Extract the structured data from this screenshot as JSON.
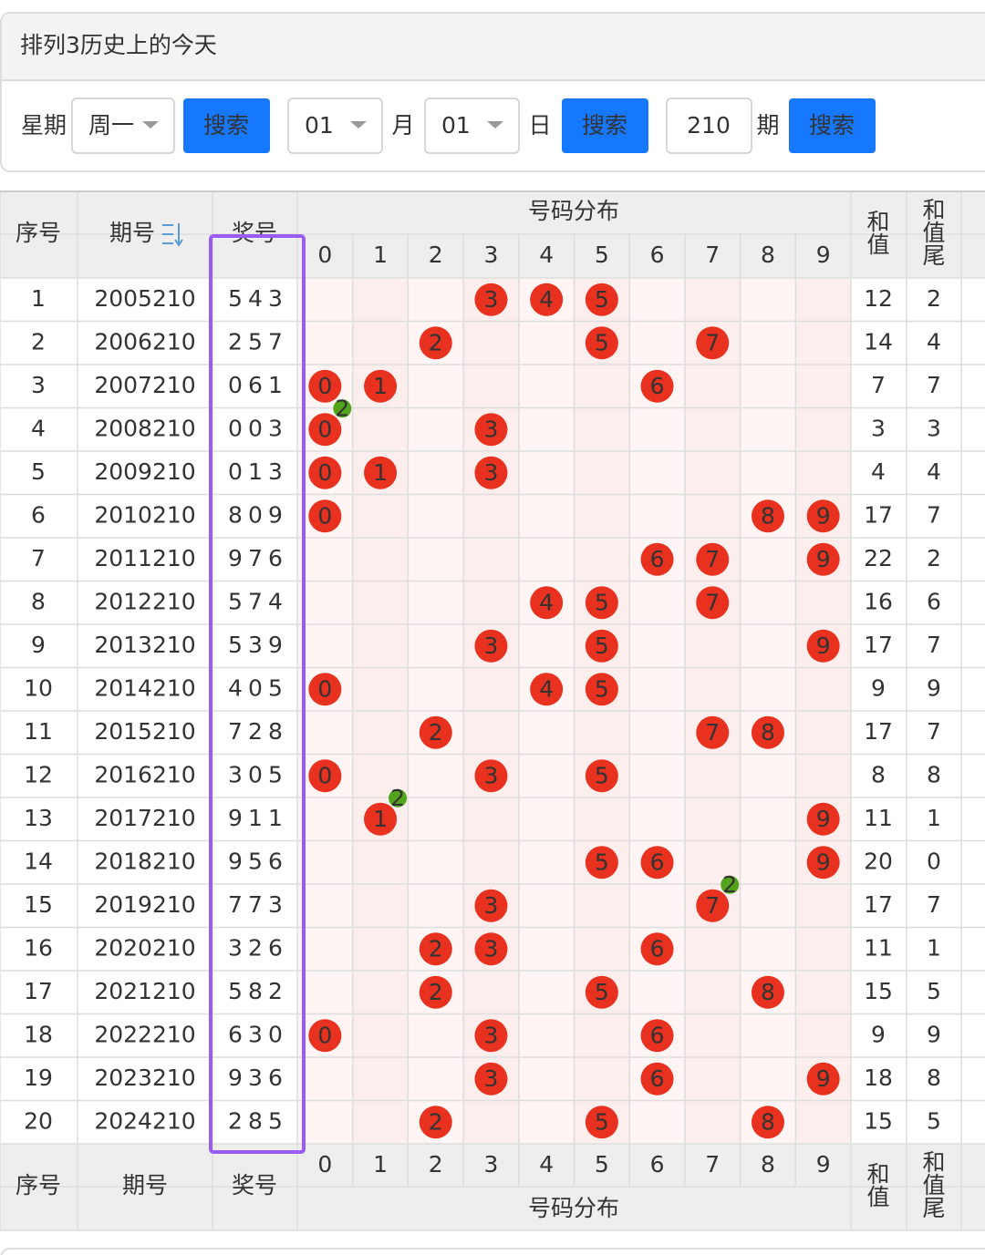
{
  "header": {
    "title": "排列3历史上的今天"
  },
  "search": {
    "weekday_label": "星期",
    "weekday": "周一",
    "button_1": "搜索",
    "month": "01",
    "month_label": "月",
    "day": "01",
    "day_label": "日",
    "button_2": "搜索",
    "issue": "210",
    "issue_label": "期",
    "button_3": "搜索"
  },
  "table": {
    "headers": {
      "index": "序号",
      "issue": "期号",
      "number": "奖号",
      "distribution": "号码分布",
      "digits": [
        "0",
        "1",
        "2",
        "3",
        "4",
        "5",
        "6",
        "7",
        "8",
        "9"
      ],
      "sum": "和值",
      "sum_tail": "和值尾"
    },
    "rows": [
      {
        "index": "1",
        "issue": "2005210",
        "number": [
          "5",
          "4",
          "3"
        ],
        "sum": "12",
        "sum_tail": "2"
      },
      {
        "index": "2",
        "issue": "2006210",
        "number": [
          "2",
          "5",
          "7"
        ],
        "sum": "14",
        "sum_tail": "4"
      },
      {
        "index": "3",
        "issue": "2007210",
        "number": [
          "0",
          "6",
          "1"
        ],
        "sum": "7",
        "sum_tail": "7"
      },
      {
        "index": "4",
        "issue": "2008210",
        "number": [
          "0",
          "0",
          "3"
        ],
        "sum": "3",
        "sum_tail": "3",
        "repeat": "2"
      },
      {
        "index": "5",
        "issue": "2009210",
        "number": [
          "0",
          "1",
          "3"
        ],
        "sum": "4",
        "sum_tail": "4"
      },
      {
        "index": "6",
        "issue": "2010210",
        "number": [
          "8",
          "0",
          "9"
        ],
        "sum": "17",
        "sum_tail": "7"
      },
      {
        "index": "7",
        "issue": "2011210",
        "number": [
          "9",
          "7",
          "6"
        ],
        "sum": "22",
        "sum_tail": "2"
      },
      {
        "index": "8",
        "issue": "2012210",
        "number": [
          "5",
          "7",
          "4"
        ],
        "sum": "16",
        "sum_tail": "6"
      },
      {
        "index": "9",
        "issue": "2013210",
        "number": [
          "5",
          "3",
          "9"
        ],
        "sum": "17",
        "sum_tail": "7"
      },
      {
        "index": "10",
        "issue": "2014210",
        "number": [
          "4",
          "0",
          "5"
        ],
        "sum": "9",
        "sum_tail": "9"
      },
      {
        "index": "11",
        "issue": "2015210",
        "number": [
          "7",
          "2",
          "8"
        ],
        "sum": "17",
        "sum_tail": "7"
      },
      {
        "index": "12",
        "issue": "2016210",
        "number": [
          "3",
          "0",
          "5"
        ],
        "sum": "8",
        "sum_tail": "8"
      },
      {
        "index": "13",
        "issue": "2017210",
        "number": [
          "9",
          "1",
          "1"
        ],
        "sum": "11",
        "sum_tail": "1",
        "repeat": "2"
      },
      {
        "index": "14",
        "issue": "2018210",
        "number": [
          "9",
          "5",
          "6"
        ],
        "sum": "20",
        "sum_tail": "0"
      },
      {
        "index": "15",
        "issue": "2019210",
        "number": [
          "7",
          "7",
          "3"
        ],
        "sum": "17",
        "sum_tail": "7",
        "repeat": "2"
      },
      {
        "index": "16",
        "issue": "2020210",
        "number": [
          "3",
          "2",
          "6"
        ],
        "sum": "11",
        "sum_tail": "1"
      },
      {
        "index": "17",
        "issue": "2021210",
        "number": [
          "5",
          "8",
          "2"
        ],
        "sum": "15",
        "sum_tail": "5"
      },
      {
        "index": "18",
        "issue": "2022210",
        "number": [
          "6",
          "3",
          "0"
        ],
        "sum": "9",
        "sum_tail": "9"
      },
      {
        "index": "19",
        "issue": "2023210",
        "number": [
          "9",
          "3",
          "6"
        ],
        "sum": "18",
        "sum_tail": "8"
      },
      {
        "index": "20",
        "issue": "2024210",
        "number": [
          "2",
          "8",
          "5"
        ],
        "sum": "15",
        "sum_tail": "5"
      }
    ]
  }
}
